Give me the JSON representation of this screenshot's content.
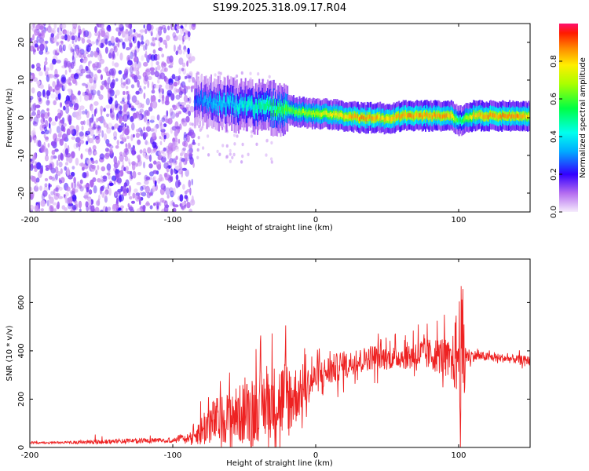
{
  "title": "S199.2025.318.09.17.R04",
  "colors": {
    "snr_line": "#ee2222",
    "colormap": [
      "#e8d0f8",
      "#b46cf0",
      "#7a00ff",
      "#2222ff",
      "#00aaff",
      "#00ffff",
      "#00ff66",
      "#66ff00",
      "#ffff00",
      "#ffaa00",
      "#ff2200",
      "#ff1060"
    ]
  },
  "chart_data": [
    {
      "type": "heatmap",
      "title": "S199.2025.318.09.17.R04",
      "xlabel": "Height of straight line (km)",
      "ylabel": "Frequency (Hz)",
      "xlim": [
        -200,
        150
      ],
      "ylim": [
        -25,
        25
      ],
      "xticks": [
        -200,
        -100,
        0,
        100
      ],
      "xtick_labels": [
        "-200",
        "-100",
        "0",
        "100"
      ],
      "yticks": [
        -20,
        -10,
        0,
        10,
        20
      ],
      "ytick_labels": [
        "-20",
        "-10",
        "0",
        "10",
        "20"
      ],
      "colorbar": {
        "label": "Normalized spectral amplitude",
        "range": [
          0,
          1
        ],
        "ticks": [
          0,
          0.2,
          0.4,
          0.6,
          0.8
        ],
        "tick_labels": [
          "0.0",
          "0.2",
          "0.4",
          "0.6",
          "0.8"
        ]
      },
      "ridge": {
        "x": [
          -85,
          -75,
          -60,
          -45,
          -30,
          -20,
          -10,
          0,
          10,
          20,
          30,
          40,
          45,
          50,
          60,
          70,
          80,
          90,
          95,
          100,
          110,
          120,
          130,
          140,
          150
        ],
        "freq": [
          5,
          4,
          3.5,
          3,
          2.5,
          2,
          1.5,
          1,
          1,
          0.5,
          0,
          0,
          0,
          -0.5,
          0.5,
          0.5,
          0.5,
          0.5,
          0.5,
          -1,
          0.5,
          0.5,
          0.5,
          0.5,
          0.5
        ],
        "amplitude": [
          0.25,
          0.35,
          0.4,
          0.45,
          0.55,
          0.6,
          0.65,
          0.7,
          0.75,
          0.8,
          0.85,
          0.85,
          0.8,
          0.8,
          0.85,
          0.85,
          0.85,
          0.85,
          0.8,
          0.5,
          0.8,
          0.85,
          0.85,
          0.85,
          0.8
        ]
      },
      "noise_region": {
        "x_range": [
          -200,
          -85
        ],
        "freq_range": [
          -25,
          25
        ],
        "amplitude_range": [
          0.02,
          0.15
        ]
      }
    },
    {
      "type": "line",
      "xlabel": "Height of straight line (km)",
      "ylabel": "SNR (10 * v/v)",
      "xlim": [
        -200,
        150
      ],
      "ylim": [
        0,
        780
      ],
      "xticks": [
        -200,
        -100,
        0,
        100
      ],
      "xtick_labels": [
        "-200",
        "-100",
        "0",
        "100"
      ],
      "yticks": [
        0,
        200,
        400,
        600
      ],
      "ytick_labels": [
        "0",
        "200",
        "400",
        "600"
      ],
      "series": [
        {
          "name": "SNR",
          "x": [
            -200,
            -180,
            -160,
            -140,
            -120,
            -100,
            -90,
            -85,
            -80,
            -75,
            -70,
            -60,
            -50,
            -40,
            -30,
            -20,
            -10,
            0,
            10,
            20,
            30,
            40,
            50,
            60,
            70,
            80,
            90,
            95,
            98,
            100,
            102,
            104,
            105,
            110,
            120,
            130,
            140,
            150
          ],
          "y": [
            20,
            20,
            22,
            25,
            28,
            30,
            40,
            50,
            70,
            100,
            110,
            130,
            140,
            170,
            190,
            200,
            230,
            290,
            320,
            340,
            360,
            375,
            370,
            375,
            385,
            385,
            380,
            360,
            380,
            400,
            380,
            390,
            380,
            380,
            375,
            370,
            365,
            360
          ],
          "envelope": [
            5,
            5,
            8,
            10,
            10,
            10,
            25,
            40,
            120,
            150,
            160,
            180,
            220,
            240,
            250,
            290,
            150,
            110,
            110,
            90,
            80,
            90,
            80,
            80,
            120,
            110,
            140,
            100,
            300,
            400,
            500,
            450,
            60,
            40,
            30,
            30,
            30,
            30
          ]
        }
      ]
    }
  ]
}
